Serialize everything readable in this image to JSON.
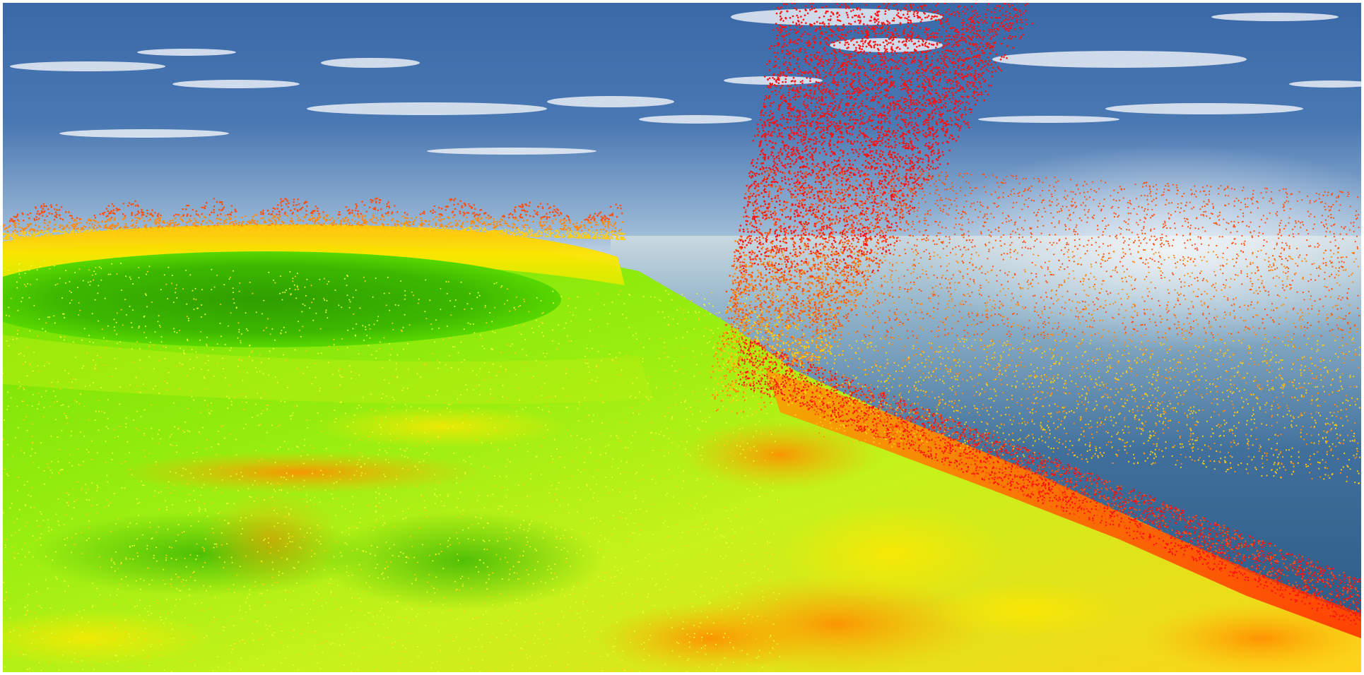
{
  "scene": {
    "kind": "3d-terrain-particle-visualization",
    "heatmap_colors": [
      "#2fa800",
      "#55e600",
      "#b8f000",
      "#f4f000",
      "#ffb000",
      "#ff6a00",
      "#ff1a00"
    ],
    "sky_colors": {
      "top": "#3b69a8",
      "mid": "#6f98c8",
      "horizon": "#e9eef0"
    },
    "sea_colors": {
      "near": "#2f5f8e",
      "far": "#8fb2c9"
    },
    "particle_colors": [
      "#ff1010",
      "#ff5010",
      "#ff8a10",
      "#ffcc10",
      "#e8ff30"
    ]
  }
}
